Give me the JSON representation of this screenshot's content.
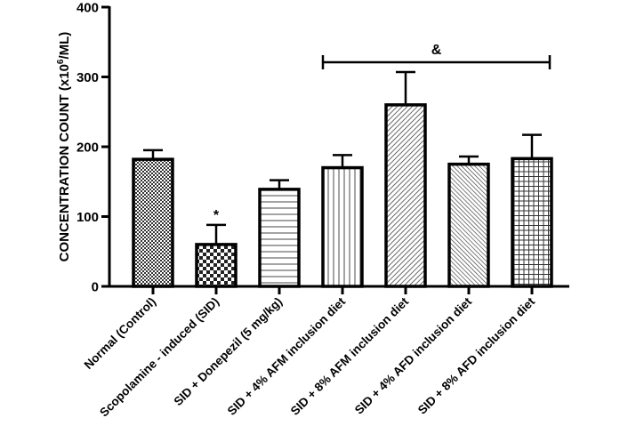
{
  "chart_data": {
    "type": "bar",
    "title": "",
    "xlabel": "",
    "ylabel": "CONCENTRATION COUNT (x10",
    "ylabel_superscript": "6",
    "ylabel_suffix": "/ML)",
    "ylim": [
      0,
      400
    ],
    "yticks": [
      0,
      100,
      200,
      300,
      400
    ],
    "ytick_labels": [
      "0",
      "100",
      "200",
      "300",
      "400"
    ],
    "grid": false,
    "categories": [
      "Normal (Control)",
      "Scopolamine - induced (SID)",
      "SID + Donepezil (5 mg/kg)",
      "SID + 4% AFM inclusion diet",
      "SID + 8% AFM inclusion diet",
      "SID + 4% AFD inclusion diet",
      "SID + 8% AFD inclusion diet"
    ],
    "values": [
      182,
      60,
      139,
      170,
      260,
      175,
      183
    ],
    "error_upper": [
      195,
      88,
      152,
      188,
      307,
      186,
      217
    ],
    "patterns": [
      "fine-checker",
      "coarse-checker",
      "horizontal-lines",
      "vertical-lines",
      "diagonal-lines",
      "dense-diagonal-lines",
      "grid"
    ],
    "annotations": [
      {
        "text": "*",
        "category_index": 1
      },
      {
        "text": "&",
        "bracket_from": 3,
        "bracket_to": 6,
        "y": 321
      }
    ],
    "colors": {
      "stroke": "#000000",
      "background": "#ffffff",
      "pattern": "#555555"
    }
  }
}
